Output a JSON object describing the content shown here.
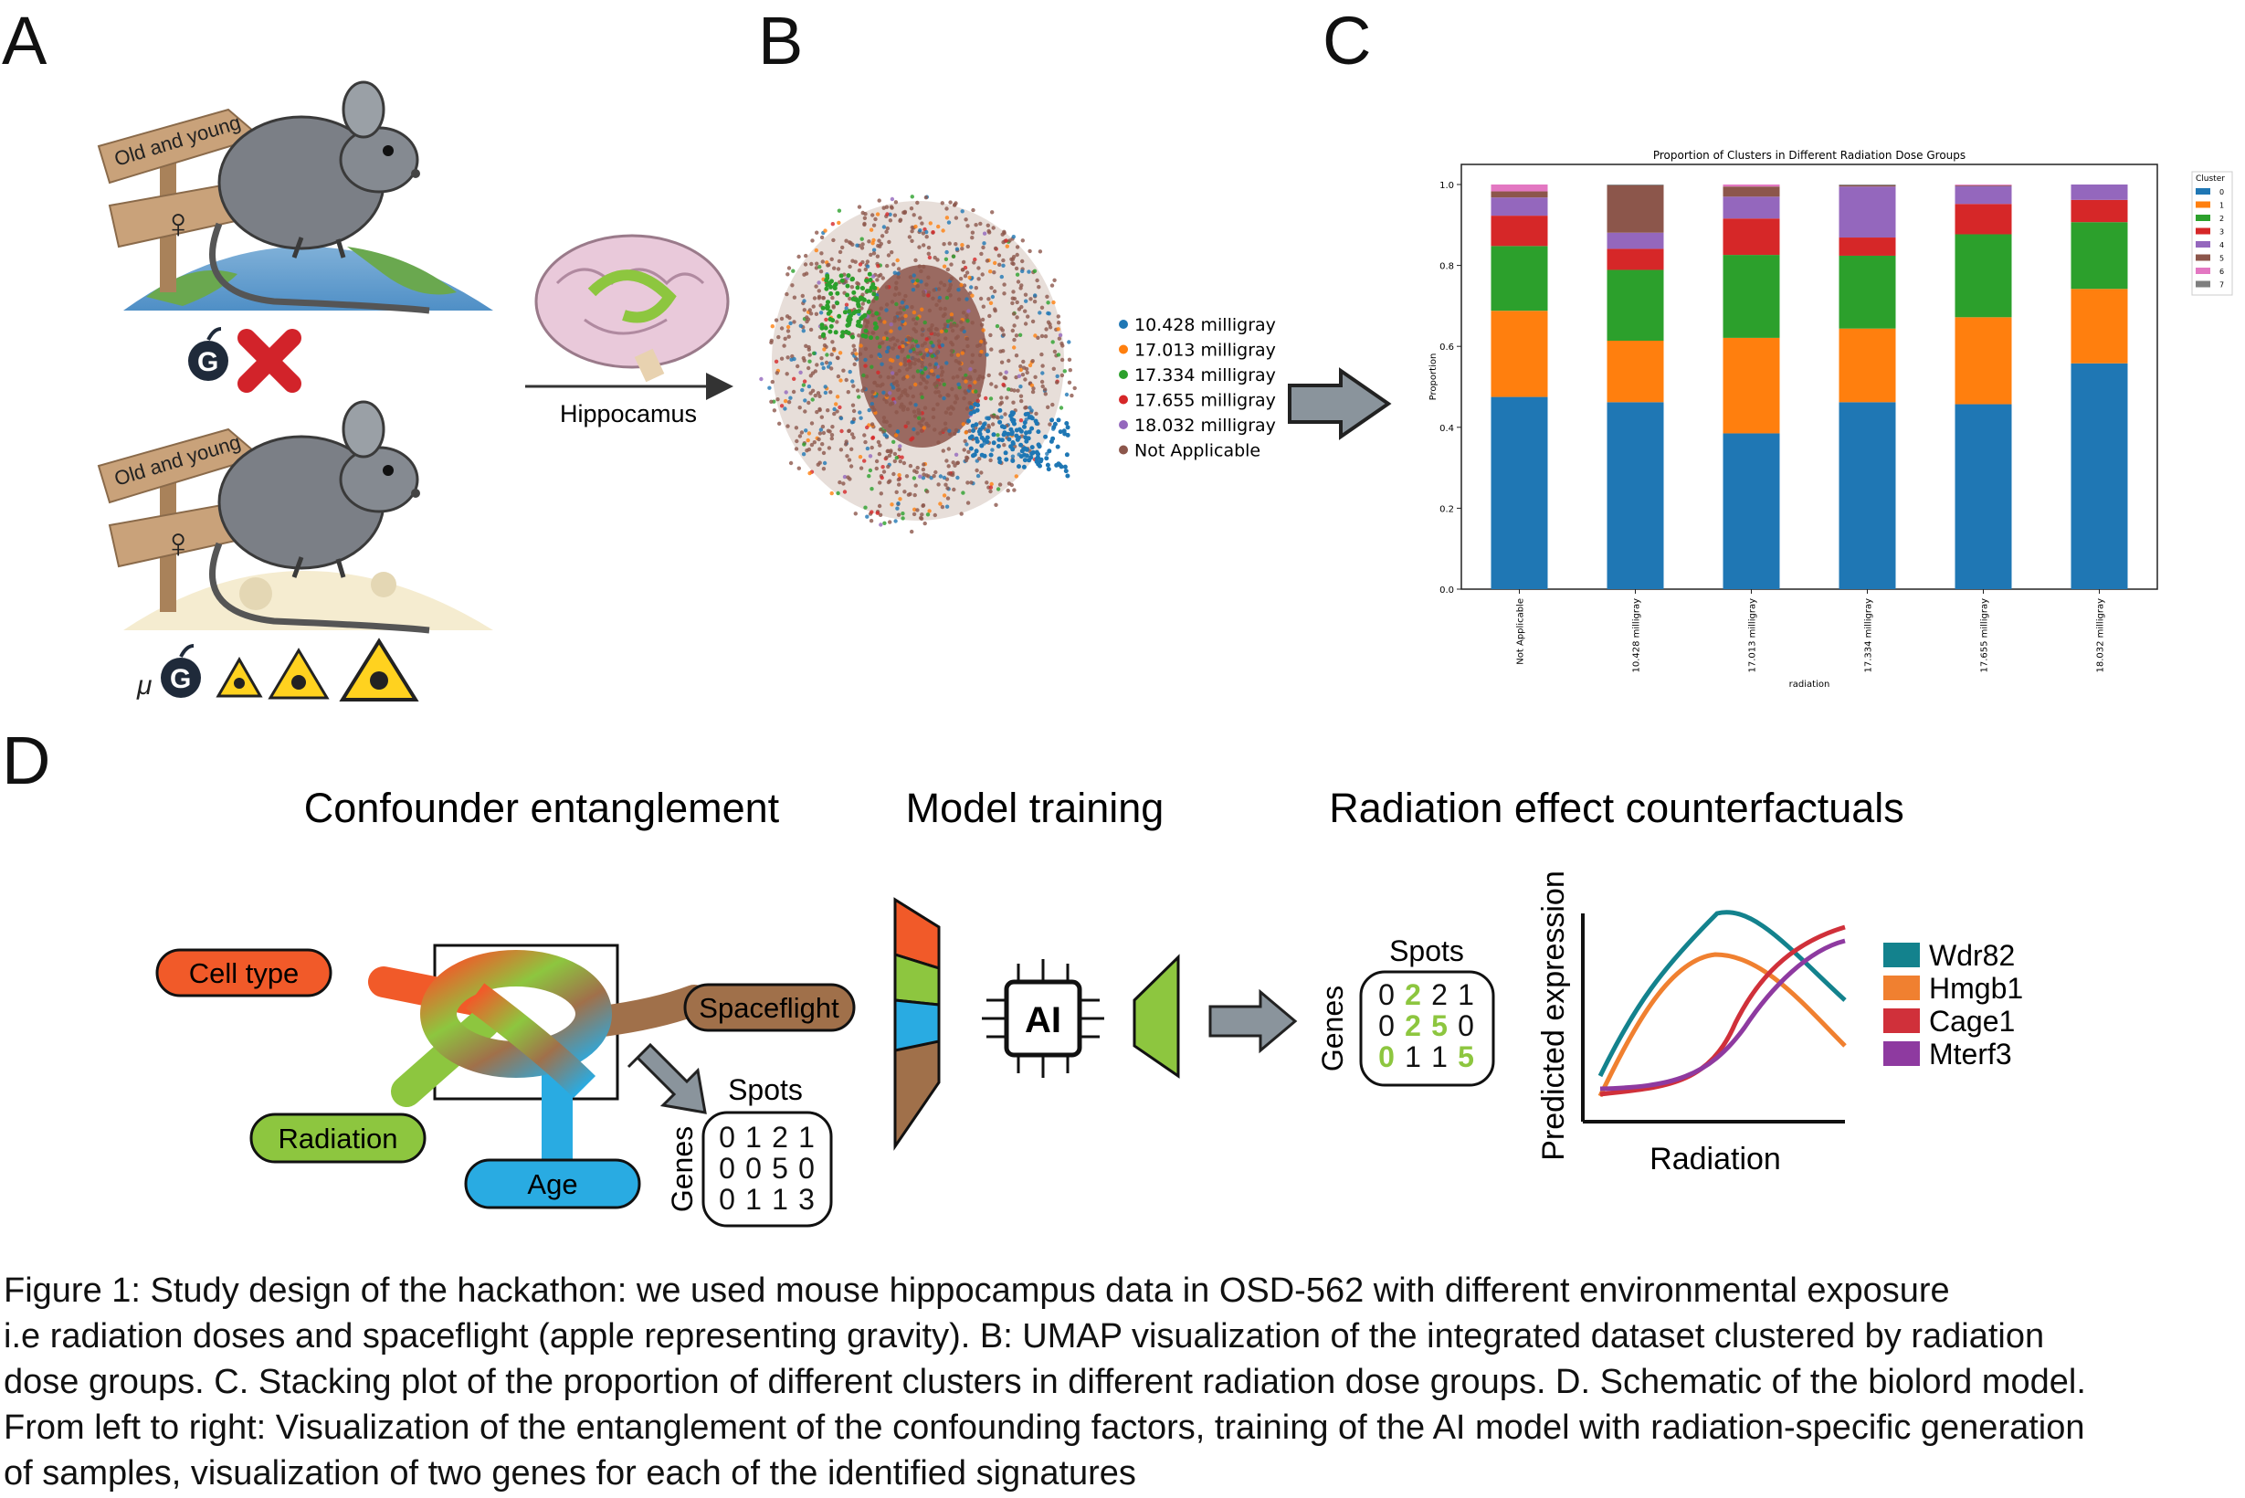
{
  "panels": {
    "a": "A",
    "b": "B",
    "c": "C",
    "d": "D"
  },
  "panel_a": {
    "sign_text": "Old and young",
    "female_symbol": "♀",
    "gravity_label": "G",
    "micro_prefix": "μ",
    "icons": [
      "mouse-icon",
      "earth-icon",
      "moon-icon",
      "apple-gravity-icon",
      "red-cross-icon",
      "radiation-icon"
    ]
  },
  "arrow_label": "Hippocamus",
  "umap_legend": [
    {
      "label": "10.428 milligray",
      "color": "#1f77b4"
    },
    {
      "label": "17.013 milligray",
      "color": "#ff7f0e"
    },
    {
      "label": "17.334 milligray",
      "color": "#2ca02c"
    },
    {
      "label": "17.655 milligray",
      "color": "#d62728"
    },
    {
      "label": "18.032 milligray",
      "color": "#9467bd"
    },
    {
      "label": "Not Applicable",
      "color": "#8c564b"
    }
  ],
  "chart_data": {
    "type": "bar",
    "stacked": true,
    "title": "Proportion of Clusters in Different Radiation Dose Groups",
    "xlabel": "radiation",
    "ylabel": "Proportion",
    "ylim": [
      0,
      1.0
    ],
    "yticks": [
      "0.0",
      "0.2",
      "0.4",
      "0.6",
      "0.8",
      "1.0"
    ],
    "categories": [
      "Not Applicable",
      "10.428 milligray",
      "17.013 milligray",
      "17.334 milligray",
      "17.655 milligray",
      "18.032 milligray"
    ],
    "legend_title": "Cluster",
    "legend_position": "right",
    "series": [
      {
        "name": "0",
        "color": "#1f77b4",
        "values": [
          0.475,
          0.462,
          0.385,
          0.462,
          0.457,
          0.558
        ]
      },
      {
        "name": "1",
        "color": "#ff7f0e",
        "values": [
          0.213,
          0.152,
          0.236,
          0.182,
          0.215,
          0.184
        ]
      },
      {
        "name": "2",
        "color": "#2ca02c",
        "values": [
          0.16,
          0.175,
          0.205,
          0.18,
          0.205,
          0.165
        ]
      },
      {
        "name": "3",
        "color": "#d62728",
        "values": [
          0.075,
          0.052,
          0.09,
          0.045,
          0.075,
          0.055
        ]
      },
      {
        "name": "4",
        "color": "#9467bd",
        "values": [
          0.045,
          0.04,
          0.054,
          0.126,
          0.044,
          0.038
        ]
      },
      {
        "name": "5",
        "color": "#8c564b",
        "values": [
          0.015,
          0.117,
          0.025,
          0.003,
          0.002,
          0.0
        ]
      },
      {
        "name": "6",
        "color": "#e377c2",
        "values": [
          0.017,
          0.0,
          0.005,
          0.0,
          0.002,
          0.0
        ]
      },
      {
        "name": "7",
        "color": "#7f7f7f",
        "values": [
          0.0,
          0.002,
          0.0,
          0.002,
          0.0,
          0.0
        ]
      }
    ]
  },
  "panel_d": {
    "headings": [
      "Confounder entanglement",
      "Model training",
      "Radiation effect counterfactuals"
    ],
    "factors": [
      {
        "label": "Cell type",
        "color": "#f15a29"
      },
      {
        "label": "Spaceflight",
        "color": "#a0704a"
      },
      {
        "label": "Radiation",
        "color": "#8dc63f"
      },
      {
        "label": "Age",
        "color": "#29abe2"
      }
    ],
    "spots_label": "Spots",
    "genes_label": "Genes",
    "matrix_left": [
      [
        "0",
        "1",
        "2",
        "1"
      ],
      [
        "0",
        "0",
        "5",
        "0"
      ],
      [
        "0",
        "1",
        "1",
        "3"
      ]
    ],
    "matrix_right": [
      [
        "0",
        "2",
        "2",
        "1"
      ],
      [
        "0",
        "2",
        "5",
        "0"
      ],
      [
        "0",
        "1",
        "1",
        "5"
      ]
    ],
    "ai_label": "AI",
    "plot_ylabel": "Predicted expression",
    "plot_xlabel": "Radiation",
    "genes": [
      {
        "name": "Wdr82",
        "color": "#13828d"
      },
      {
        "name": "Hmgb1",
        "color": "#f08030"
      },
      {
        "name": "Cage1",
        "color": "#d0303a"
      },
      {
        "name": "Mterf3",
        "color": "#8e3aa0"
      }
    ]
  },
  "caption": [
    "Figure 1: Study design of the hackathon: we used mouse hippocampus data in OSD-562 with different environmental exposure",
    "i.e radiation doses and spaceflight (apple representing gravity). B: UMAP visualization of the integrated dataset clustered by radiation",
    "dose groups. C. Stacking plot of the proportion of different clusters in different radiation dose groups. D. Schematic of the biolord model.",
    "From left to right: Visualization of the entanglement of the confounding factors, training of the AI model with radiation-specific generation",
    "of samples, visualization of two genes for each of the identified signatures"
  ]
}
